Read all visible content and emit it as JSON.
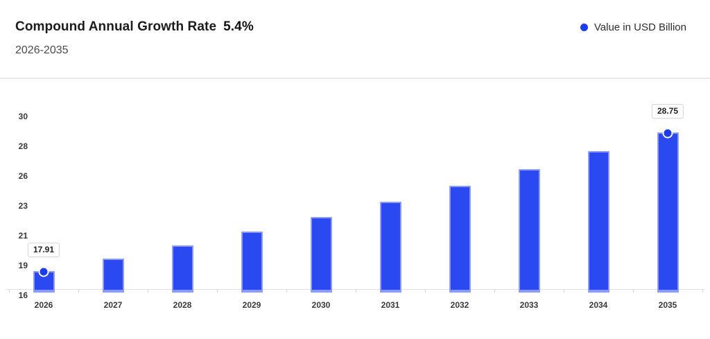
{
  "header": {
    "title": "Compound Annual Growth Rate",
    "title_value": "5.4%",
    "subtitle": "2026-2035",
    "legend": {
      "label": "Value in USD Billion"
    }
  },
  "colors": {
    "bar_fill": "#2b49f1",
    "bar_border": "#8d9cf8",
    "marker_fill": "#1b3cf0",
    "legend_dot": "#1d3ef0",
    "axis_line": "#e0e0e0"
  },
  "chart_data": {
    "type": "bar",
    "title": "Compound Annual Growth Rate 5.4%",
    "subtitle": "2026-2035",
    "series": [
      {
        "name": "Value in USD Billion",
        "values": [
          17.91,
          18.88,
          19.9,
          20.97,
          22.11,
          23.3,
          24.56,
          25.88,
          27.28,
          28.75
        ]
      }
    ],
    "categories": [
      "2026",
      "2027",
      "2028",
      "2029",
      "2030",
      "2031",
      "2032",
      "2033",
      "2034",
      "2035"
    ],
    "xlabel": "",
    "ylabel": "",
    "ylim": [
      16,
      30
    ],
    "y_tick_labels": [
      "16",
      "19",
      "21",
      "23",
      "26",
      "28",
      "30"
    ],
    "grid": false,
    "legend_position": "top-right",
    "annotations": [
      {
        "index": 0,
        "label": "17.91",
        "marker": true
      },
      {
        "index": 9,
        "label": "28.75",
        "marker": true
      }
    ]
  }
}
